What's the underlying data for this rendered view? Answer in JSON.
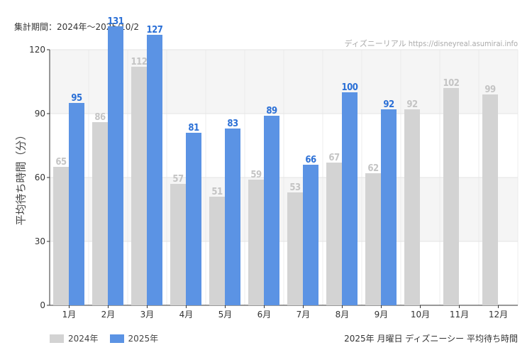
{
  "header": {
    "period": "集計期間：2024年～2025/10/2",
    "credit": "ディズニーリアル https://disneyreal.asumirai.info"
  },
  "footer": {
    "title": "2025年 月曜日 ディズニーシー 平均待ち時間"
  },
  "colors": {
    "series_2024": "#d3d3d3",
    "series_2025": "#5b93e4",
    "label_2024": "#c4c4c4",
    "label_2025": "#2a6fd6"
  },
  "chart_data": {
    "type": "bar",
    "ylabel": "平均待ち時間（分）",
    "categories": [
      "1月",
      "2月",
      "3月",
      "4月",
      "5月",
      "6月",
      "7月",
      "8月",
      "9月",
      "10月",
      "11月",
      "12月"
    ],
    "ylim": [
      0,
      120
    ],
    "yticks": [
      0,
      30,
      60,
      90,
      120
    ],
    "grid": true,
    "legend_position": "bottom-left",
    "series": [
      {
        "name": "2024年",
        "values": [
          65,
          86,
          112,
          57,
          51,
          59,
          53,
          67,
          62,
          92,
          102,
          99
        ]
      },
      {
        "name": "2025年",
        "values": [
          95,
          131,
          127,
          81,
          83,
          89,
          66,
          100,
          92,
          null,
          null,
          null
        ]
      }
    ]
  }
}
